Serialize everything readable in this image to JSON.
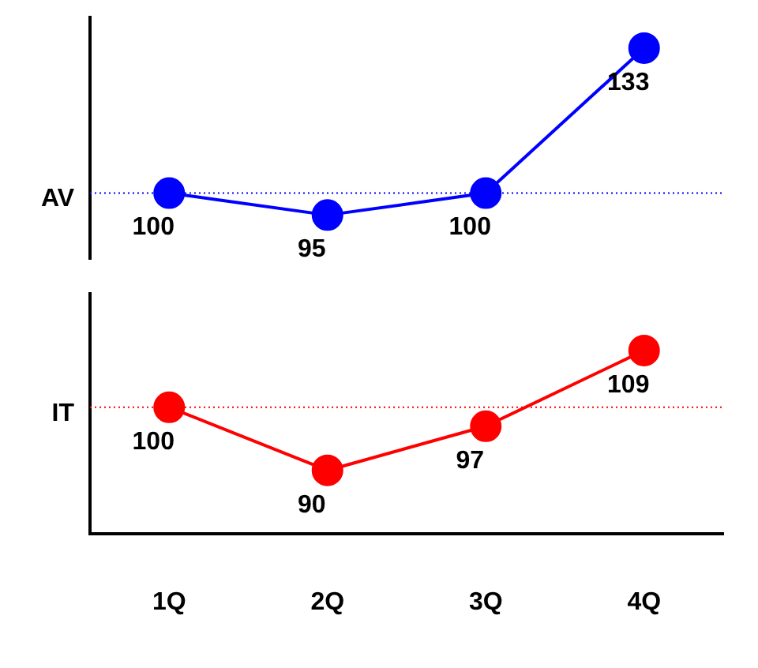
{
  "chart_data": [
    {
      "type": "line",
      "ylabel": "AV",
      "categories": [
        null,
        null,
        null,
        null
      ],
      "series": [
        {
          "color": "#0000ff",
          "values": [
            100,
            95,
            100,
            133
          ]
        }
      ],
      "ylim": [
        85,
        140
      ],
      "data_labels": true,
      "marker": "circle",
      "tick_labels": false,
      "ref_lines": [
        {
          "axis": "y",
          "value": 100,
          "color": "#0000ff",
          "line_style": "dotted"
        }
      ]
    },
    {
      "type": "line",
      "ylabel": "IT",
      "categories": [
        "1Q",
        "2Q",
        "3Q",
        "4Q"
      ],
      "series": [
        {
          "color": "#ff0000",
          "values": [
            100,
            90,
            97,
            109
          ]
        }
      ],
      "ylim": [
        80,
        118
      ],
      "data_labels": true,
      "marker": "circle",
      "tick_labels": "x",
      "ref_lines": [
        {
          "axis": "y",
          "value": 100,
          "color": "#ff0000",
          "line_style": "dotted"
        }
      ]
    }
  ]
}
